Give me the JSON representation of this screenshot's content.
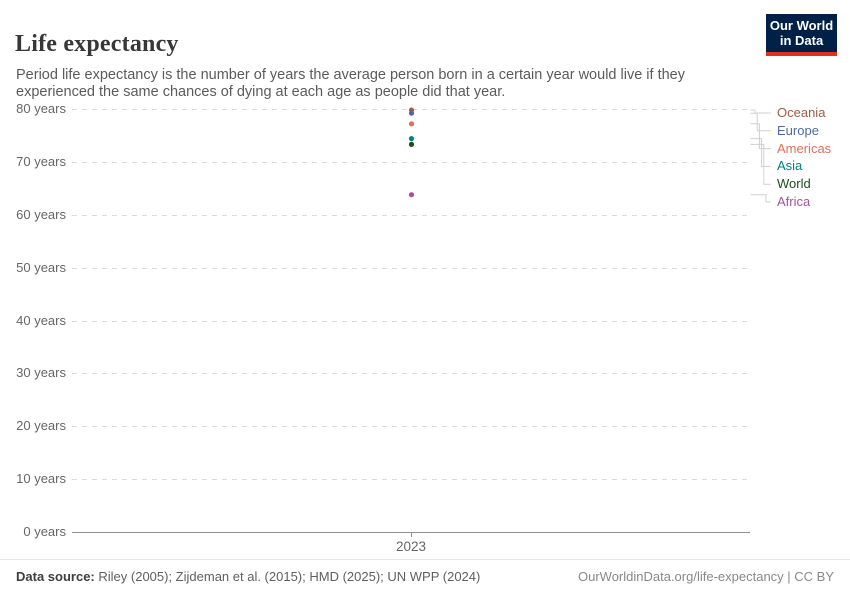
{
  "header": {
    "title": "Life expectancy",
    "subtitle": "Period life expectancy is the number of years the average person born in a certain year would live if they experienced the same chances of dying at each age as people did that year.",
    "logo": {
      "line1": "Our World",
      "line2": "in Data",
      "bg_color": "#002147",
      "accent_color": "#e0311a"
    }
  },
  "chart_data": {
    "type": "scatter",
    "title": "Life expectancy",
    "xlabel": "2023",
    "x": [
      2023
    ],
    "ylim": [
      0,
      80
    ],
    "y_tick_step": 10,
    "y_ticks": [
      {
        "label": "80 years",
        "value": 80
      },
      {
        "label": "70 years",
        "value": 70
      },
      {
        "label": "60 years",
        "value": 60
      },
      {
        "label": "50 years",
        "value": 50
      },
      {
        "label": "40 years",
        "value": 40
      },
      {
        "label": "30 years",
        "value": 30
      },
      {
        "label": "20 years",
        "value": 20
      },
      {
        "label": "10 years",
        "value": 10
      },
      {
        "label": "0 years",
        "value": 0
      }
    ],
    "grid": "dashed-horizontal",
    "legend_position": "right",
    "series": [
      {
        "name": "Oceania",
        "x": 2023,
        "value": 79.8,
        "color": "#9e5c45"
      },
      {
        "name": "Europe",
        "x": 2023,
        "value": 79.2,
        "color": "#4c6a9c"
      },
      {
        "name": "Americas",
        "x": 2023,
        "value": 77.2,
        "color": "#e56e5a"
      },
      {
        "name": "Asia",
        "x": 2023,
        "value": 74.4,
        "color": "#00847e"
      },
      {
        "name": "World",
        "x": 2023,
        "value": 73.3,
        "color": "#1d4e1d"
      },
      {
        "name": "Africa",
        "x": 2023,
        "value": 63.8,
        "color": "#a2559c"
      }
    ]
  },
  "footer": {
    "source_label": "Data source:",
    "source_text": "Riley (2005); Zijdeman et al. (2015); HMD (2025); UN WPP (2024)",
    "credit": "OurWorldinData.org/life-expectancy | CC BY"
  }
}
